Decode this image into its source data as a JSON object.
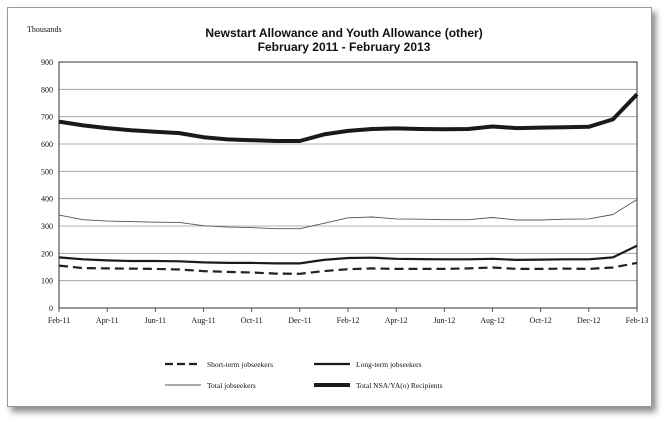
{
  "chart_data": {
    "type": "line",
    "title": "Newstart Allowance and Youth Allowance (other)",
    "subtitle": "February 2011 - February 2013",
    "ylabel": "Thousands",
    "xlabel": "",
    "ylim": [
      0,
      900
    ],
    "yticks": [
      "0",
      "100",
      "200",
      "300",
      "400",
      "500",
      "600",
      "700",
      "800",
      "900"
    ],
    "xtick_labels": [
      "Feb-11",
      "Apr-11",
      "Jun-11",
      "Aug-11",
      "Oct-11",
      "Dec-11",
      "Feb-12",
      "Apr-12",
      "Jun-12",
      "Aug-12",
      "Oct-12",
      "Dec-12",
      "Feb-13"
    ],
    "x": [
      "Feb-11",
      "Mar-11",
      "Apr-11",
      "May-11",
      "Jun-11",
      "Jul-11",
      "Aug-11",
      "Sep-11",
      "Oct-11",
      "Nov-11",
      "Dec-11",
      "Jan-12",
      "Feb-12",
      "Mar-12",
      "Apr-12",
      "May-12",
      "Jun-12",
      "Jul-12",
      "Aug-12",
      "Sep-12",
      "Oct-12",
      "Nov-12",
      "Dec-12",
      "Jan-13",
      "Feb-13"
    ],
    "grid": true,
    "legend_position": "bottom",
    "series": [
      {
        "name": "Short-term jobseekers",
        "style": "dashed",
        "color": "#222222",
        "values": [
          155,
          146,
          145,
          144,
          143,
          141,
          135,
          132,
          130,
          126,
          125,
          135,
          142,
          145,
          143,
          143,
          143,
          145,
          148,
          143,
          143,
          144,
          143,
          148,
          165
        ]
      },
      {
        "name": "Long-term jobseekers",
        "style": "solid",
        "color": "#1a1a1a",
        "values": [
          185,
          178,
          174,
          172,
          172,
          171,
          167,
          165,
          165,
          163,
          163,
          176,
          183,
          184,
          180,
          179,
          178,
          178,
          180,
          176,
          177,
          178,
          178,
          185,
          228
        ]
      },
      {
        "name": "Total jobseekers",
        "style": "thin",
        "color": "#555555",
        "values": [
          340,
          323,
          318,
          316,
          314,
          313,
          301,
          296,
          294,
          290,
          290,
          310,
          330,
          333,
          326,
          325,
          323,
          323,
          331,
          322,
          322,
          325,
          326,
          342,
          397
        ]
      },
      {
        "name": "Total NSA/YA(o) Recipients",
        "style": "thick",
        "color": "#1a1a1a",
        "values": [
          682,
          668,
          658,
          650,
          645,
          640,
          625,
          617,
          614,
          611,
          611,
          635,
          648,
          655,
          657,
          655,
          654,
          655,
          664,
          658,
          660,
          661,
          663,
          690,
          782
        ]
      }
    ]
  }
}
